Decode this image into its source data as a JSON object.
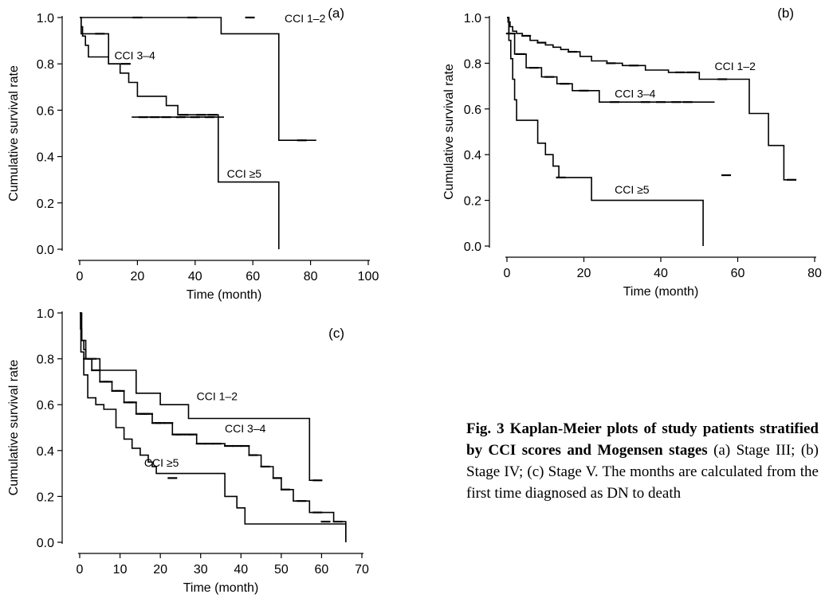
{
  "chart_data": [
    {
      "type": "line",
      "panel_label": "(a)",
      "xlabel": "Time (month)",
      "ylabel": "Cumulative survival rate",
      "xlim": [
        0,
        100
      ],
      "ylim": [
        0,
        1
      ],
      "xticks": [
        0,
        20,
        40,
        60,
        80,
        100
      ],
      "yticks": [
        0.0,
        0.2,
        0.4,
        0.6,
        0.8,
        1.0
      ],
      "series": [
        {
          "name": "CCI 1–2",
          "x": [
            0,
            49,
            49,
            69,
            69,
            82
          ],
          "y": [
            1.0,
            1.0,
            0.93,
            0.93,
            0.47,
            0.47
          ],
          "censors": [
            [
              20,
              1.0
            ],
            [
              39,
              1.0
            ],
            [
              59,
              1.0
            ],
            [
              77,
              0.47
            ]
          ]
        },
        {
          "name": "CCI 3–4",
          "x": [
            0,
            0.5,
            0.5,
            10,
            10,
            15
          ],
          "y": [
            1.0,
            1.0,
            0.93,
            0.93,
            0.8,
            0.8
          ],
          "censors": [
            [
              7,
              0.93
            ],
            [
              16,
              0.8
            ]
          ]
        },
        {
          "name": "CCI ≥5",
          "x": [
            0,
            0.5,
            0.5,
            1,
            1,
            2,
            2,
            3,
            3,
            10,
            10,
            14,
            14,
            17,
            17,
            20,
            20,
            30,
            30,
            34,
            34,
            48,
            48,
            69,
            69
          ],
          "y": [
            1.0,
            1.0,
            0.96,
            0.96,
            0.92,
            0.92,
            0.88,
            0.88,
            0.83,
            0.83,
            0.8,
            0.8,
            0.76,
            0.76,
            0.72,
            0.72,
            0.66,
            0.66,
            0.62,
            0.62,
            0.58,
            0.58,
            0.29,
            0.29,
            0.0
          ],
          "censors": [
            [
              36,
              0.58
            ],
            [
              42,
              0.58
            ],
            [
              46,
              0.58
            ]
          ]
        },
        {
          "name": "",
          "x": [
            18,
            50
          ],
          "y": [
            0.57,
            0.57
          ],
          "censors": [
            [
              22,
              0.57
            ],
            [
              26,
              0.57
            ],
            [
              30,
              0.57
            ],
            [
              35,
              0.57
            ],
            [
              40,
              0.57
            ],
            [
              45,
              0.57
            ]
          ]
        }
      ],
      "labels": [
        {
          "text": "CCI 1–2",
          "x": 71,
          "y": 0.98
        },
        {
          "text": "CCI 3–4",
          "x": 12,
          "y": 0.82
        },
        {
          "text": "CCI ≥5",
          "x": 51,
          "y": 0.31
        }
      ]
    },
    {
      "type": "line",
      "panel_label": "(b)",
      "xlabel": "Time (month)",
      "ylabel": "Cumulative survival rate",
      "xlim": [
        0,
        80
      ],
      "ylim": [
        0,
        1
      ],
      "xticks": [
        0,
        20,
        40,
        60,
        80
      ],
      "yticks": [
        0.0,
        0.2,
        0.4,
        0.6,
        0.8,
        1.0
      ],
      "series": [
        {
          "name": "CCI 1–2",
          "x": [
            0,
            0.3,
            0.3,
            0.8,
            0.8,
            1.5,
            1.5,
            2.5,
            2.5,
            4,
            4,
            6,
            6,
            8,
            8,
            10,
            10,
            12,
            12,
            14,
            14,
            16,
            16,
            19,
            19,
            22,
            22,
            26,
            26,
            30,
            30,
            36,
            36,
            42,
            42,
            50,
            50,
            63,
            63,
            68,
            68,
            72,
            72,
            75
          ],
          "y": [
            1.0,
            1.0,
            0.98,
            0.98,
            0.96,
            0.96,
            0.94,
            0.94,
            0.93,
            0.93,
            0.92,
            0.92,
            0.9,
            0.9,
            0.89,
            0.89,
            0.88,
            0.88,
            0.87,
            0.87,
            0.86,
            0.86,
            0.85,
            0.85,
            0.83,
            0.83,
            0.81,
            0.81,
            0.8,
            0.8,
            0.79,
            0.79,
            0.77,
            0.77,
            0.76,
            0.76,
            0.73,
            0.73,
            0.58,
            0.58,
            0.44,
            0.44,
            0.29,
            0.29
          ],
          "censors": [
            [
              5,
              0.92
            ],
            [
              9,
              0.89
            ],
            [
              17,
              0.85
            ],
            [
              27,
              0.8
            ],
            [
              33,
              0.79
            ],
            [
              45,
              0.76
            ],
            [
              48,
              0.76
            ],
            [
              56,
              0.73
            ],
            [
              74,
              0.29
            ]
          ]
        },
        {
          "name": "CCI 3–4",
          "x": [
            0,
            0.5,
            0.5,
            2,
            2,
            5,
            5,
            9,
            9,
            13,
            13,
            17,
            17,
            24,
            24,
            54
          ],
          "y": [
            1.0,
            1.0,
            0.93,
            0.93,
            0.84,
            0.84,
            0.78,
            0.78,
            0.74,
            0.74,
            0.71,
            0.71,
            0.68,
            0.68,
            0.63,
            0.63
          ],
          "censors": [
            [
              1,
              0.93
            ],
            [
              3.5,
              0.84
            ],
            [
              7,
              0.78
            ],
            [
              11,
              0.74
            ],
            [
              15,
              0.71
            ],
            [
              20,
              0.68
            ],
            [
              28,
              0.63
            ],
            [
              36,
              0.63
            ],
            [
              40,
              0.63
            ],
            [
              44,
              0.63
            ],
            [
              47,
              0.63
            ],
            [
              57,
              0.31
            ]
          ]
        },
        {
          "name": "CCI ≥5",
          "x": [
            0,
            0.5,
            0.5,
            1,
            1,
            1.5,
            1.5,
            2,
            2,
            2.5,
            2.5,
            8,
            8,
            10,
            10,
            12,
            12,
            13.5,
            13.5,
            15,
            15,
            22,
            22,
            51,
            51
          ],
          "y": [
            1.0,
            1.0,
            0.9,
            0.9,
            0.82,
            0.82,
            0.73,
            0.73,
            0.64,
            0.64,
            0.55,
            0.55,
            0.45,
            0.45,
            0.4,
            0.4,
            0.35,
            0.35,
            0.3,
            0.3,
            0.3,
            0.3,
            0.2,
            0.2,
            0.0
          ],
          "censors": [
            [
              14,
              0.3
            ]
          ]
        }
      ],
      "labels": [
        {
          "text": "CCI 1–2",
          "x": 54,
          "y": 0.77
        },
        {
          "text": "CCI 3–4",
          "x": 28,
          "y": 0.65
        },
        {
          "text": "CCI ≥5",
          "x": 28,
          "y": 0.23
        }
      ]
    },
    {
      "type": "line",
      "panel_label": "(c)",
      "xlabel": "Time (month)",
      "ylabel": "Cumulative survival rate",
      "xlim": [
        0,
        70
      ],
      "ylim": [
        0,
        1
      ],
      "xticks": [
        0,
        10,
        20,
        30,
        40,
        50,
        60,
        70
      ],
      "yticks": [
        0.0,
        0.2,
        0.4,
        0.6,
        0.8,
        1.0
      ],
      "series": [
        {
          "name": "CCI 1–2",
          "x": [
            0,
            0.2,
            0.2,
            0.5,
            0.5,
            1,
            1,
            1.5,
            1.5,
            5,
            5,
            14,
            14,
            20,
            20,
            27,
            27,
            57,
            57,
            59
          ],
          "y": [
            1.0,
            1.0,
            0.93,
            0.93,
            0.88,
            0.88,
            0.84,
            0.84,
            0.8,
            0.8,
            0.75,
            0.75,
            0.65,
            0.65,
            0.6,
            0.6,
            0.54,
            0.54,
            0.27,
            0.27
          ],
          "censors": [
            [
              3,
              0.8
            ],
            [
              59,
              0.27
            ]
          ]
        },
        {
          "name": "CCI 3–4",
          "x": [
            0,
            0.5,
            0.5,
            1.5,
            1.5,
            3,
            3,
            5,
            5,
            8,
            8,
            11,
            11,
            14,
            14,
            18,
            18,
            23,
            23,
            29,
            29,
            36,
            36,
            42,
            42,
            45,
            45,
            48,
            48,
            50,
            50,
            53,
            53,
            57,
            57,
            63,
            63,
            66,
            66
          ],
          "y": [
            1.0,
            1.0,
            0.88,
            0.88,
            0.8,
            0.8,
            0.75,
            0.75,
            0.7,
            0.7,
            0.66,
            0.66,
            0.61,
            0.61,
            0.56,
            0.56,
            0.52,
            0.52,
            0.47,
            0.47,
            0.43,
            0.43,
            0.42,
            0.42,
            0.38,
            0.38,
            0.33,
            0.33,
            0.28,
            0.28,
            0.23,
            0.23,
            0.18,
            0.18,
            0.13,
            0.13,
            0.09,
            0.09,
            0.0
          ],
          "censors": [
            [
              2,
              0.8
            ],
            [
              4,
              0.75
            ],
            [
              6,
              0.7
            ],
            [
              7,
              0.7
            ],
            [
              9,
              0.66
            ],
            [
              10,
              0.66
            ],
            [
              12,
              0.61
            ],
            [
              13,
              0.61
            ],
            [
              15,
              0.56
            ],
            [
              16,
              0.56
            ],
            [
              17,
              0.56
            ],
            [
              19,
              0.52
            ],
            [
              20,
              0.52
            ],
            [
              22,
              0.52
            ],
            [
              24,
              0.47
            ],
            [
              25,
              0.47
            ],
            [
              27,
              0.47
            ],
            [
              28,
              0.47
            ],
            [
              30,
              0.43
            ],
            [
              32,
              0.43
            ],
            [
              34,
              0.43
            ],
            [
              37,
              0.42
            ],
            [
              39,
              0.42
            ],
            [
              41,
              0.42
            ],
            [
              43,
              0.38
            ],
            [
              46,
              0.33
            ],
            [
              49,
              0.28
            ],
            [
              51,
              0.23
            ],
            [
              55,
              0.18
            ],
            [
              59,
              0.13
            ],
            [
              61,
              0.09
            ],
            [
              64,
              0.09
            ]
          ]
        },
        {
          "name": "CCI ≥5",
          "x": [
            0,
            0.3,
            0.3,
            1,
            1,
            2,
            2,
            4,
            4,
            6,
            6,
            9,
            9,
            11,
            11,
            13,
            13,
            15,
            15,
            17,
            17,
            18,
            18,
            19,
            19,
            21,
            21,
            36,
            36,
            39,
            39,
            41,
            41,
            66,
            66
          ],
          "y": [
            1.0,
            1.0,
            0.83,
            0.83,
            0.73,
            0.73,
            0.63,
            0.63,
            0.6,
            0.6,
            0.58,
            0.58,
            0.5,
            0.5,
            0.45,
            0.45,
            0.41,
            0.41,
            0.38,
            0.38,
            0.35,
            0.35,
            0.33,
            0.33,
            0.3,
            0.3,
            0.3,
            0.3,
            0.2,
            0.2,
            0.15,
            0.15,
            0.08,
            0.08,
            0.0
          ],
          "censors": [
            [
              23,
              0.28
            ]
          ]
        }
      ],
      "labels": [
        {
          "text": "CCI 1–2",
          "x": 29,
          "y": 0.62
        },
        {
          "text": "CCI 3–4",
          "x": 36,
          "y": 0.48
        },
        {
          "text": "CCI ≥5",
          "x": 16,
          "y": 0.33
        }
      ]
    }
  ],
  "caption": {
    "title": "Fig. 3  Kaplan-Meier plots of study patients stratified by CCI scores and Mogensen stages",
    "text": "(a) Stage III; (b) Stage IV; (c) Stage V. The months are calculated from the first time diagnosed as DN to death"
  }
}
